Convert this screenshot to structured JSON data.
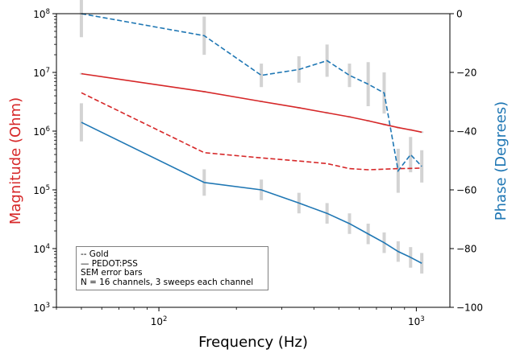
{
  "chart_data": {
    "type": "line",
    "xlabel": "Frequency (Hz)",
    "ylabel_left": "Magnitude (Ohm)",
    "ylabel_right": "Phase (Degrees)",
    "x_scale": "log",
    "y_left_scale": "log",
    "xlim": [
      40,
      1350
    ],
    "ylim_left": [
      1000,
      100000000
    ],
    "ylim_right": [
      -100,
      0
    ],
    "x_ticks": [
      100,
      1000
    ],
    "x_tick_labels": [
      "10^2",
      "10^3"
    ],
    "y_left_ticks": [
      1000,
      10000,
      100000,
      1000000,
      10000000,
      100000000
    ],
    "y_left_tick_labels": [
      "10^3",
      "10^4",
      "10^5",
      "10^6",
      "10^7",
      "10^8"
    ],
    "y_right_ticks": [
      0,
      -20,
      -40,
      -60,
      -80,
      -100
    ],
    "y_right_tick_labels": [
      "0",
      "−20",
      "−40",
      "−60",
      "−80",
      "−100"
    ],
    "grid": false,
    "legend_placement": "lower-left",
    "legend_lines": [
      "-- Gold",
      "— PEDOT:PSS",
      "SEM error bars",
      "N = 16 channels, 3 sweeps each channel"
    ],
    "colors": {
      "magnitude": "#d62728",
      "phase": "#1f77b4",
      "error_bar": "#d3d3d3"
    },
    "series": [
      {
        "axis": "left",
        "material": "PEDOT:PSS",
        "quantity": "magnitude",
        "style": "solid",
        "color": "#d62728",
        "x": [
          50,
          150,
          250,
          350,
          450,
          550,
          650,
          750,
          850,
          950,
          1050
        ],
        "values": [
          9500000,
          4700000,
          3200000,
          2500000,
          2050000,
          1750000,
          1500000,
          1300000,
          1150000,
          1050000,
          960000
        ],
        "errors": [
          300000,
          150000,
          100000,
          80000,
          70000,
          60000,
          50000,
          45000,
          40000,
          35000,
          30000
        ]
      },
      {
        "axis": "left",
        "material": "Gold",
        "quantity": "magnitude",
        "style": "dashed",
        "color": "#d62728",
        "x": [
          50,
          150,
          250,
          350,
          450,
          550,
          650,
          750,
          850,
          950,
          1050
        ],
        "values": [
          4500000,
          430000,
          350000,
          310000,
          280000,
          230000,
          220000,
          225000,
          230000,
          232000,
          235000
        ],
        "errors": [
          0,
          0,
          0,
          0,
          0,
          0,
          0,
          0,
          0,
          0,
          0
        ]
      },
      {
        "axis": "right",
        "material": "Gold",
        "quantity": "phase",
        "style": "dashed",
        "color": "#1f77b4",
        "x": [
          50,
          150,
          250,
          350,
          450,
          550,
          650,
          750,
          850,
          950,
          1050
        ],
        "values": [
          0,
          -7.5,
          -21,
          -19,
          -16,
          -21,
          -24,
          -27,
          -53.5,
          -48,
          -52
        ],
        "errors": [
          8,
          6.5,
          4,
          4.5,
          5.5,
          4,
          7.5,
          7,
          7.5,
          6,
          5.5
        ]
      },
      {
        "axis": "right",
        "material": "PEDOT:PSS",
        "quantity": "phase",
        "style": "solid",
        "color": "#1f77b4",
        "x": [
          50,
          150,
          250,
          350,
          450,
          550,
          650,
          750,
          850,
          950,
          1050
        ],
        "values": [
          -37,
          -57.5,
          -60,
          -64.5,
          -68,
          -71.5,
          -75,
          -78,
          -81,
          -83,
          -85
        ],
        "errors": [
          6.5,
          4.5,
          3.5,
          3.5,
          3.5,
          3.5,
          3.5,
          3.5,
          3.5,
          3.5,
          3.5
        ]
      }
    ]
  }
}
